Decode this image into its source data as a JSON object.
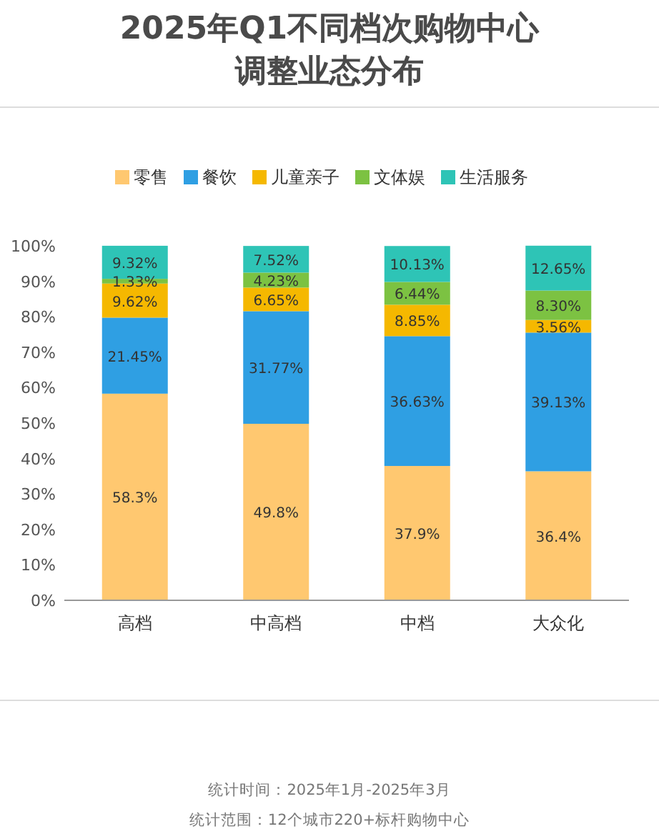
{
  "chart_data": {
    "type": "bar",
    "stacked": true,
    "title": "2025年Q1不同档次购物中心调整业态分布",
    "categories": [
      "高档",
      "中高档",
      "中档",
      "大众化"
    ],
    "series": [
      {
        "name": "零售",
        "color": "#ffc870",
        "values": [
          58.3,
          49.8,
          37.9,
          36.4
        ],
        "value_labels": [
          "58.3%",
          "49.8%",
          "37.9%",
          "36.4%"
        ]
      },
      {
        "name": "餐饮",
        "color": "#2f9fe3",
        "values": [
          21.45,
          31.77,
          36.63,
          39.13
        ],
        "value_labels": [
          "21.45%",
          "31.77%",
          "36.63%",
          "39.13%"
        ]
      },
      {
        "name": "儿童亲子",
        "color": "#f5b800",
        "values": [
          9.62,
          6.65,
          8.85,
          3.56
        ],
        "value_labels": [
          "9.62%",
          "6.65%",
          "8.85%",
          "3.56%"
        ]
      },
      {
        "name": "文体娱",
        "color": "#7cc242",
        "values": [
          1.33,
          4.23,
          6.44,
          8.3
        ],
        "value_labels": [
          "1.33%",
          "4.23%",
          "6.44%",
          "8.30%"
        ]
      },
      {
        "name": "生活服务",
        "color": "#2ec4b6",
        "values": [
          9.32,
          7.52,
          10.13,
          12.65
        ],
        "value_labels": [
          "9.32%",
          "7.52%",
          "10.13%",
          "12.65%"
        ]
      }
    ],
    "ylim": [
      0,
      100
    ],
    "yticks": [
      {
        "value": 0,
        "label": "0%"
      },
      {
        "value": 10,
        "label": "10%"
      },
      {
        "value": 20,
        "label": "20%"
      },
      {
        "value": 30,
        "label": "30%"
      },
      {
        "value": 40,
        "label": "40%"
      },
      {
        "value": 50,
        "label": "50%"
      },
      {
        "value": 60,
        "label": "60%"
      },
      {
        "value": 70,
        "label": "70%"
      },
      {
        "value": 80,
        "label": "80%"
      },
      {
        "value": 90,
        "label": "90%"
      },
      {
        "value": 100,
        "label": "100%"
      }
    ],
    "legend": "top",
    "annotations": [
      "统计时间：2025年1月-2025年3月",
      "统计范围：12个城市220+标杆购物中心"
    ]
  }
}
